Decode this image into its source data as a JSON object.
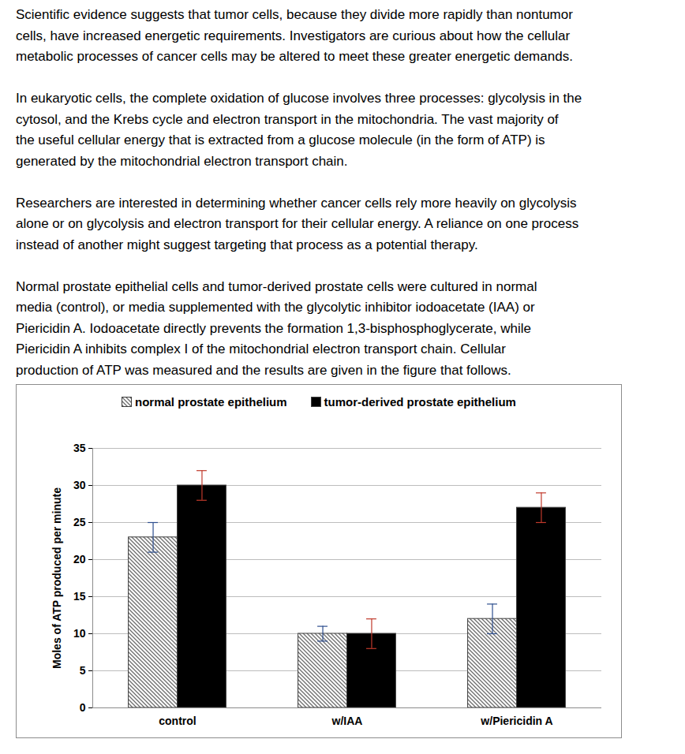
{
  "passage": [
    [
      "Scientific evidence suggests that tumor cells, because they divide more rapidly than nontumor",
      "cells, have increased energetic requirements.  Investigators are curious about how the cellular",
      "metabolic processes of cancer cells may be altered to meet these greater energetic demands."
    ],
    [
      "In eukaryotic cells, the complete oxidation of glucose involves three processes: glycolysis in the",
      "cytosol, and the Krebs cycle and electron transport in the mitochondria.  The vast majority of",
      "the useful cellular energy that is extracted from a glucose molecule (in the form of ATP) is",
      "generated by the mitochondrial electron transport chain."
    ],
    [
      "Researchers are interested in determining whether cancer cells rely more heavily on glycolysis",
      "alone or on glycolysis and electron transport for their cellular energy.  A reliance on one process",
      "instead of another might suggest targeting that process as a potential therapy."
    ],
    [
      "Normal prostate epithelial cells and tumor-derived prostate cells were cultured in normal",
      "media (control), or media supplemented with the glycolytic inhibitor iodoacetate (IAA) or",
      "Piericidin A.  Iodoacetate directly prevents the formation 1,3-bisphosphoglycerate, while",
      "Piericidin A inhibits complex I of the mitochondrial electron transport chain.  Cellular",
      "production of ATP was measured and the results are given in the figure that follows."
    ]
  ],
  "chart_data": {
    "type": "bar",
    "categories": [
      "control",
      "w/IAA",
      "w/Piericidin A"
    ],
    "series": [
      {
        "name": "normal prostate epithelium",
        "color": "#6e6e6e",
        "values": [
          23,
          10,
          12
        ],
        "errors": [
          2,
          1,
          2
        ]
      },
      {
        "name": "tumor-derived prostate epithelium",
        "color": "#000000",
        "values": [
          30,
          10,
          27
        ],
        "errors": [
          2,
          2,
          2
        ]
      }
    ],
    "y_label": "Moles of ATP produced per minute",
    "ylim": [
      0,
      35
    ],
    "yticks": [
      0,
      5,
      10,
      15,
      20,
      25,
      30,
      35
    ],
    "grid": true,
    "legend": "top"
  }
}
